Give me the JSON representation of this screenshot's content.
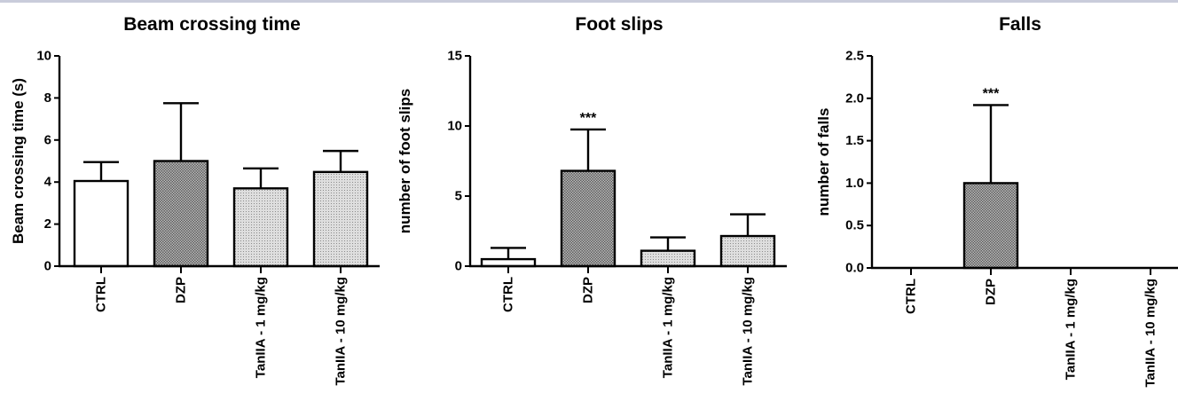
{
  "chart_data": [
    {
      "type": "bar",
      "title": "Beam crossing time",
      "xlabel": "",
      "ylabel": "Beam crossing time (s)",
      "ylim": [
        0,
        10
      ],
      "yticks": [
        0,
        2,
        4,
        6,
        8,
        10
      ],
      "tick_labels": [
        "0",
        "2",
        "4",
        "6",
        "8",
        "10"
      ],
      "categories": [
        "CTRL",
        "DZP",
        "TanIIA - 1 mg/kg",
        "TanIIA - 10 mg/kg"
      ],
      "values": [
        4.05,
        5.0,
        3.7,
        4.48
      ],
      "errors": [
        0.9,
        2.75,
        0.95,
        1.0
      ],
      "annotations": [
        "",
        "",
        "",
        ""
      ]
    },
    {
      "type": "bar",
      "title": "Foot slips",
      "xlabel": "",
      "ylabel": "number of foot slips",
      "ylim": [
        0,
        15
      ],
      "yticks": [
        0,
        5,
        10,
        15
      ],
      "tick_labels": [
        "0",
        "5",
        "10",
        "15"
      ],
      "categories": [
        "CTRL",
        "DZP",
        "TanIIA - 1 mg/kg",
        "TanIIA - 10 mg/kg"
      ],
      "values": [
        0.5,
        6.8,
        1.1,
        2.15
      ],
      "errors": [
        0.8,
        2.95,
        0.95,
        1.55
      ],
      "annotations": [
        "",
        "***",
        "",
        ""
      ]
    },
    {
      "type": "bar",
      "title": "Falls",
      "xlabel": "",
      "ylabel": "number of falls",
      "ylim": [
        0,
        2.5
      ],
      "yticks": [
        0,
        0.5,
        1,
        1.5,
        2,
        2.5
      ],
      "tick_labels": [
        "0.0",
        "0.5",
        "1.0",
        "1.5",
        "2.0",
        "2.5"
      ],
      "categories": [
        "CTRL",
        "DZP",
        "TanIIA - 1 mg/kg",
        "TanIIA - 10 mg/kg"
      ],
      "values": [
        0,
        1.0,
        0,
        0
      ],
      "errors": [
        0,
        0.92,
        0,
        0
      ],
      "annotations": [
        "",
        "***",
        "",
        ""
      ]
    }
  ],
  "fills": [
    "white",
    "crosshatch",
    "dots",
    "dots"
  ],
  "colors": {
    "bar_stroke": "#000000",
    "crosshatch_fill": "#8a8a8a",
    "dots_fill": "#d9d9d9",
    "top_rule": "#c9ccdb"
  }
}
